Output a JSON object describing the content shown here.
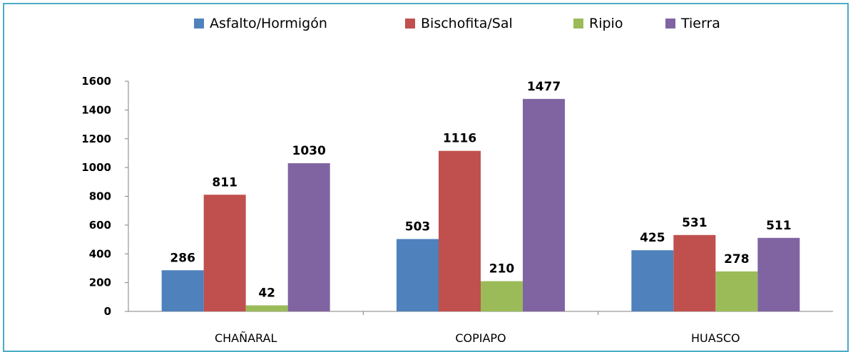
{
  "chart_data": {
    "type": "bar",
    "categories": [
      "CHAÑARAL",
      "COPIAPO",
      "HUASCO"
    ],
    "series": [
      {
        "name": "Asfalto/Hormigón",
        "color": "#4f81bd",
        "values": [
          286,
          503,
          425
        ]
      },
      {
        "name": "Bischofita/Sal",
        "color": "#c0504d",
        "values": [
          811,
          1116,
          531
        ]
      },
      {
        "name": "Ripio",
        "color": "#9bbb59",
        "values": [
          42,
          210,
          278
        ]
      },
      {
        "name": "Tierra",
        "color": "#8064a2",
        "values": [
          1030,
          1477,
          511
        ]
      }
    ],
    "ylim": [
      0,
      1600
    ],
    "yticks": [
      "0",
      "200",
      "400",
      "600",
      "800",
      "1000",
      "1200",
      "1400",
      "1600"
    ],
    "legend_position": "top",
    "grid": false
  },
  "colors": {
    "frame_border": "#4bacc6",
    "axis": "#808080"
  }
}
